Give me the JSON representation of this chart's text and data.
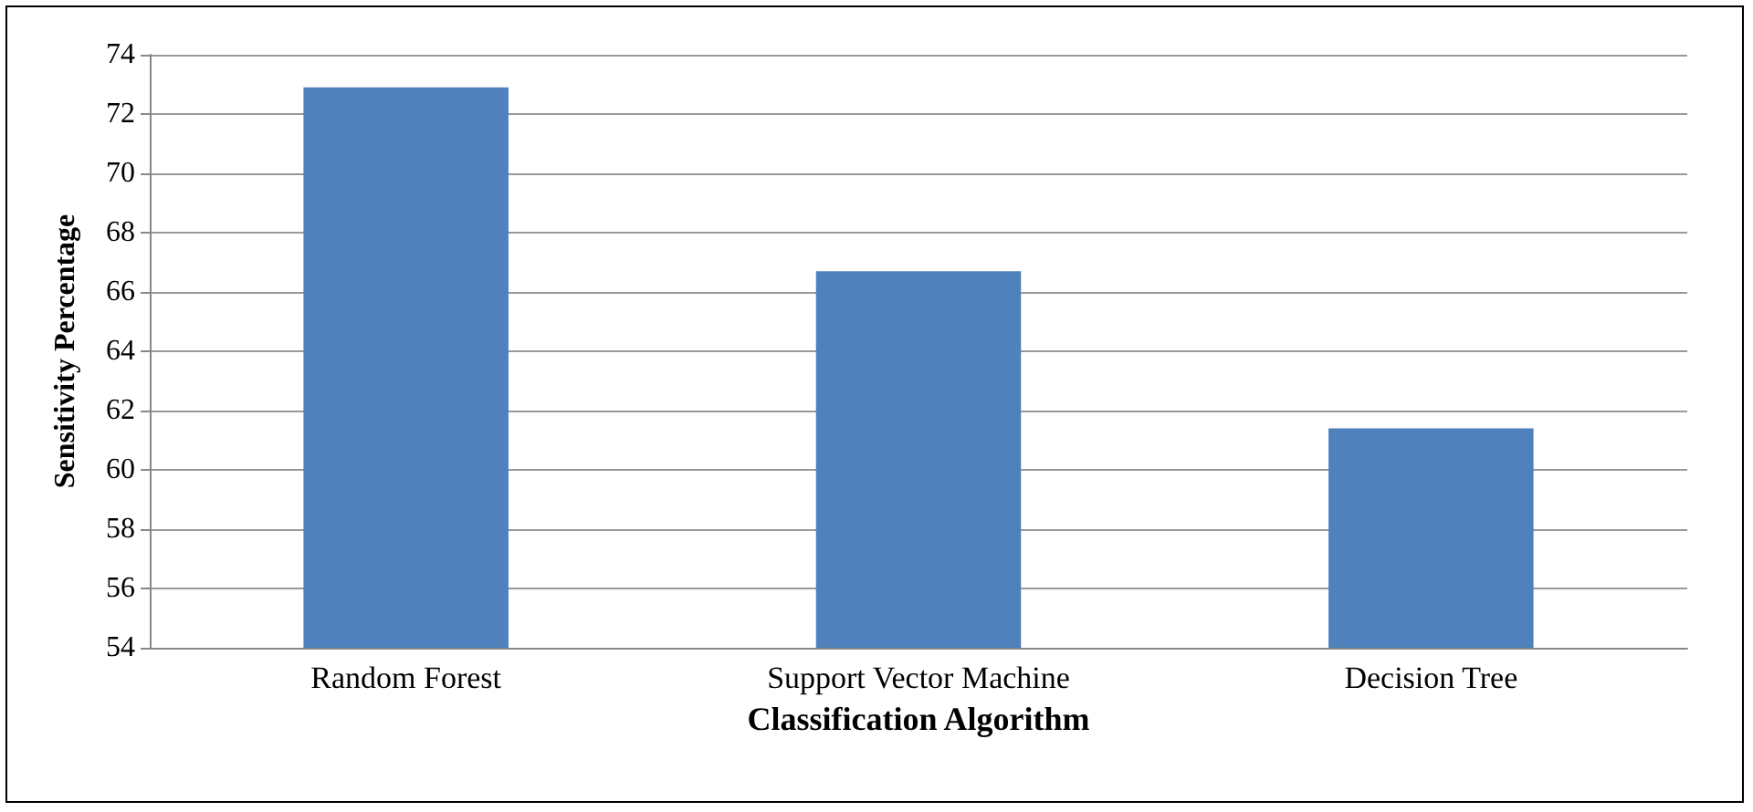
{
  "chart_data": {
    "type": "bar",
    "xlabel": "Classification Algorithm",
    "ylabel": "Sensitivity Percentage",
    "categories": [
      "Random Forest",
      "Support Vector Machine",
      "Decision Tree"
    ],
    "values": [
      72.9,
      66.7,
      61.4
    ],
    "color": "#4f81bd",
    "ylim": [
      54,
      74
    ],
    "yticks": [
      54,
      56,
      58,
      60,
      62,
      64,
      66,
      68,
      70,
      72,
      74
    ],
    "grid": "y"
  }
}
